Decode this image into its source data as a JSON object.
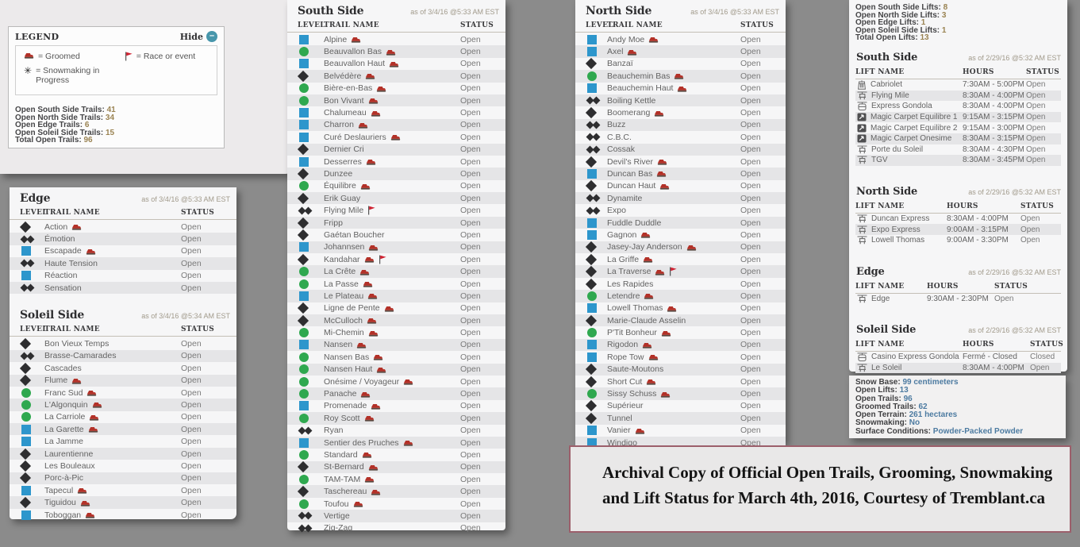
{
  "colors": {
    "desktop_gray": "#8b8b8b",
    "green_circle": "#2fa84f",
    "blue_square": "#2d96cc",
    "black_diamond": "#2e2e30",
    "groomer_red": "#b33128",
    "flag_red": "#cf2030",
    "hide_teal": "#4796ab",
    "count_value_tan": "#9a8352",
    "stats_value_blue": "#4d7ba1",
    "archival_border": "#9c5f6b"
  },
  "legend": {
    "title": "LEGEND",
    "hide_label": "Hide",
    "hide_icon": "minus-circle-icon",
    "items": [
      {
        "icon": "groomer-icon",
        "label": "= Groomed"
      },
      {
        "icon": "race-flag-icon",
        "label": "= Race or event"
      },
      {
        "icon": "snowmaking-icon",
        "label": "= Snowmaking in Progress"
      }
    ],
    "counts": [
      {
        "label": "Open South Side Trails:",
        "value": "41"
      },
      {
        "label": "Open North Side Trails:",
        "value": "34"
      },
      {
        "label": "Open Edge Trails:",
        "value": "6"
      },
      {
        "label": "Open Soleil Side Trails:",
        "value": "15"
      },
      {
        "label": "Total Open Trails:",
        "value": "96"
      }
    ]
  },
  "columns": {
    "level": "LEVEL",
    "trail": "TRAIL NAME",
    "status": "STATUS"
  },
  "lift_columns": {
    "name": "LIFT NAME",
    "hours": "HOURS",
    "status": "STATUS"
  },
  "level_icons": {
    "green": "green-circle-icon",
    "blue": "blue-square-icon",
    "black": "black-diamond-icon",
    "double": "double-black-diamond-icon"
  },
  "trail_sections": [
    {
      "id": "south",
      "title": "South Side",
      "as_of": "as of 3/4/16 @5:33 AM EST",
      "trails": [
        {
          "level": "blue",
          "name": "Alpine",
          "groomed": true,
          "status": "Open"
        },
        {
          "level": "green",
          "name": "Beauvallon Bas",
          "groomed": true,
          "status": "Open"
        },
        {
          "level": "blue",
          "name": "Beauvallon Haut",
          "groomed": true,
          "status": "Open"
        },
        {
          "level": "black",
          "name": "Belvédère",
          "groomed": true,
          "status": "Open"
        },
        {
          "level": "green",
          "name": "Bière-en-Bas",
          "groomed": true,
          "status": "Open"
        },
        {
          "level": "green",
          "name": "Bon Vivant",
          "groomed": true,
          "status": "Open"
        },
        {
          "level": "blue",
          "name": "Chalumeau",
          "groomed": true,
          "status": "Open"
        },
        {
          "level": "blue",
          "name": "Charron",
          "groomed": true,
          "status": "Open"
        },
        {
          "level": "blue",
          "name": "Curé Deslauriers",
          "groomed": true,
          "status": "Open"
        },
        {
          "level": "black",
          "name": "Dernier Cri",
          "status": "Open"
        },
        {
          "level": "blue",
          "name": "Desserres",
          "groomed": true,
          "status": "Open"
        },
        {
          "level": "black",
          "name": "Dunzee",
          "status": "Open"
        },
        {
          "level": "green",
          "name": "Équilibre",
          "groomed": true,
          "status": "Open"
        },
        {
          "level": "black",
          "name": "Erik Guay",
          "status": "Open"
        },
        {
          "level": "double",
          "name": "Flying Mile",
          "race": true,
          "status": "Open"
        },
        {
          "level": "black",
          "name": "Fripp",
          "status": "Open"
        },
        {
          "level": "black",
          "name": "Gaétan Boucher",
          "status": "Open"
        },
        {
          "level": "blue",
          "name": "Johannsen",
          "groomed": true,
          "status": "Open"
        },
        {
          "level": "black",
          "name": "Kandahar",
          "groomed": true,
          "race": true,
          "status": "Open"
        },
        {
          "level": "green",
          "name": "La Crête",
          "groomed": true,
          "status": "Open"
        },
        {
          "level": "green",
          "name": "La Passe",
          "groomed": true,
          "status": "Open"
        },
        {
          "level": "blue",
          "name": "Le Plateau",
          "groomed": true,
          "status": "Open"
        },
        {
          "level": "black",
          "name": "Ligne de Pente",
          "groomed": true,
          "status": "Open"
        },
        {
          "level": "black",
          "name": "McCulloch",
          "groomed": true,
          "status": "Open"
        },
        {
          "level": "green",
          "name": "Mi-Chemin",
          "groomed": true,
          "status": "Open"
        },
        {
          "level": "blue",
          "name": "Nansen",
          "groomed": true,
          "status": "Open"
        },
        {
          "level": "green",
          "name": "Nansen Bas",
          "groomed": true,
          "status": "Open"
        },
        {
          "level": "green",
          "name": "Nansen Haut",
          "groomed": true,
          "status": "Open"
        },
        {
          "level": "green",
          "name": "Onésime / Voyageur",
          "groomed": true,
          "status": "Open"
        },
        {
          "level": "green",
          "name": "Panache",
          "groomed": true,
          "status": "Open"
        },
        {
          "level": "blue",
          "name": "Promenade",
          "groomed": true,
          "status": "Open"
        },
        {
          "level": "green",
          "name": "Roy Scott",
          "groomed": true,
          "status": "Open"
        },
        {
          "level": "double",
          "name": "Ryan",
          "status": "Open"
        },
        {
          "level": "blue",
          "name": "Sentier des Pruches",
          "groomed": true,
          "status": "Open"
        },
        {
          "level": "green",
          "name": "Standard",
          "groomed": true,
          "status": "Open"
        },
        {
          "level": "black",
          "name": "St-Bernard",
          "groomed": true,
          "status": "Open"
        },
        {
          "level": "green",
          "name": "TAM-TAM",
          "groomed": true,
          "status": "Open"
        },
        {
          "level": "black",
          "name": "Taschereau",
          "groomed": true,
          "status": "Open"
        },
        {
          "level": "green",
          "name": "Toufou",
          "groomed": true,
          "status": "Open"
        },
        {
          "level": "double",
          "name": "Vertige",
          "status": "Open"
        },
        {
          "level": "double",
          "name": "Zig-Zag",
          "status": "Open"
        }
      ]
    },
    {
      "id": "north",
      "title": "North Side",
      "as_of": "as of 3/4/16 @5:33 AM EST",
      "trails": [
        {
          "level": "blue",
          "name": "Andy Moe",
          "groomed": true,
          "status": "Open"
        },
        {
          "level": "blue",
          "name": "Axel",
          "groomed": true,
          "status": "Open"
        },
        {
          "level": "black",
          "name": "Banzaï",
          "status": "Open"
        },
        {
          "level": "green",
          "name": "Beauchemin Bas",
          "groomed": true,
          "status": "Open"
        },
        {
          "level": "blue",
          "name": "Beauchemin Haut",
          "groomed": true,
          "status": "Open"
        },
        {
          "level": "double",
          "name": "Boiling Kettle",
          "status": "Open"
        },
        {
          "level": "black",
          "name": "Boomerang",
          "groomed": true,
          "status": "Open"
        },
        {
          "level": "double",
          "name": "Buzz",
          "status": "Open"
        },
        {
          "level": "double",
          "name": "C.B.C.",
          "status": "Open"
        },
        {
          "level": "double",
          "name": "Cossak",
          "status": "Open"
        },
        {
          "level": "black",
          "name": "Devil's River",
          "groomed": true,
          "status": "Open"
        },
        {
          "level": "blue",
          "name": "Duncan Bas",
          "groomed": true,
          "status": "Open"
        },
        {
          "level": "black",
          "name": "Duncan Haut",
          "groomed": true,
          "status": "Open"
        },
        {
          "level": "double",
          "name": "Dynamite",
          "status": "Open"
        },
        {
          "level": "double",
          "name": "Expo",
          "status": "Open"
        },
        {
          "level": "blue",
          "name": "Fuddle Duddle",
          "status": "Open"
        },
        {
          "level": "blue",
          "name": "Gagnon",
          "groomed": true,
          "status": "Open"
        },
        {
          "level": "black",
          "name": "Jasey-Jay Anderson",
          "groomed": true,
          "status": "Open"
        },
        {
          "level": "black",
          "name": "La Griffe",
          "groomed": true,
          "status": "Open"
        },
        {
          "level": "black",
          "name": "La Traverse",
          "groomed": true,
          "race": true,
          "status": "Open"
        },
        {
          "level": "black",
          "name": "Les Rapides",
          "status": "Open"
        },
        {
          "level": "green",
          "name": "Letendre",
          "groomed": true,
          "status": "Open"
        },
        {
          "level": "blue",
          "name": "Lowell Thomas",
          "groomed": true,
          "status": "Open"
        },
        {
          "level": "black",
          "name": "Marie-Claude Asselin",
          "status": "Open"
        },
        {
          "level": "green",
          "name": "P'Tit Bonheur",
          "groomed": true,
          "status": "Open"
        },
        {
          "level": "blue",
          "name": "Rigodon",
          "groomed": true,
          "status": "Open"
        },
        {
          "level": "blue",
          "name": "Rope Tow",
          "groomed": true,
          "status": "Open"
        },
        {
          "level": "black",
          "name": "Saute-Moutons",
          "status": "Open"
        },
        {
          "level": "black",
          "name": "Short Cut",
          "groomed": true,
          "status": "Open"
        },
        {
          "level": "green",
          "name": "Sissy Schuss",
          "groomed": true,
          "status": "Open"
        },
        {
          "level": "black",
          "name": "Supérieur",
          "status": "Open"
        },
        {
          "level": "black",
          "name": "Tunnel",
          "status": "Open"
        },
        {
          "level": "blue",
          "name": "Vanier",
          "groomed": true,
          "status": "Open"
        },
        {
          "level": "blue",
          "name": "Windigo",
          "status": "Open"
        }
      ]
    },
    {
      "id": "edge",
      "title": "Edge",
      "as_of": "as of 3/4/16 @5:33 AM EST",
      "trails": [
        {
          "level": "black",
          "name": "Action",
          "groomed": true,
          "status": "Open"
        },
        {
          "level": "double",
          "name": "Émotion",
          "status": "Open"
        },
        {
          "level": "blue",
          "name": "Escapade",
          "groomed": true,
          "status": "Open"
        },
        {
          "level": "double",
          "name": "Haute Tension",
          "status": "Open"
        },
        {
          "level": "blue",
          "name": "Réaction",
          "status": "Open"
        },
        {
          "level": "double",
          "name": "Sensation",
          "status": "Open"
        }
      ]
    },
    {
      "id": "soleil",
      "title": "Soleil Side",
      "as_of": "as of 3/4/16 @5:34 AM EST",
      "trails": [
        {
          "level": "black",
          "name": "Bon Vieux Temps",
          "status": "Open"
        },
        {
          "level": "double",
          "name": "Brasse-Camarades",
          "status": "Open"
        },
        {
          "level": "black",
          "name": "Cascades",
          "status": "Open"
        },
        {
          "level": "black",
          "name": "Flume",
          "groomed": true,
          "status": "Open"
        },
        {
          "level": "green",
          "name": "Franc Sud",
          "groomed": true,
          "status": "Open"
        },
        {
          "level": "green",
          "name": "L'Algonquin",
          "groomed": true,
          "status": "Open"
        },
        {
          "level": "green",
          "name": "La Carriole",
          "groomed": true,
          "status": "Open"
        },
        {
          "level": "blue",
          "name": "La Garette",
          "groomed": true,
          "status": "Open"
        },
        {
          "level": "blue",
          "name": "La Jamme",
          "status": "Open"
        },
        {
          "level": "black",
          "name": "Laurentienne",
          "status": "Open"
        },
        {
          "level": "black",
          "name": "Les Bouleaux",
          "status": "Open"
        },
        {
          "level": "black",
          "name": "Porc-à-Pic",
          "status": "Open"
        },
        {
          "level": "blue",
          "name": "Tapecul",
          "groomed": true,
          "status": "Open"
        },
        {
          "level": "black",
          "name": "Tiguidou",
          "groomed": true,
          "status": "Open"
        },
        {
          "level": "blue",
          "name": "Toboggan",
          "groomed": true,
          "status": "Open"
        }
      ]
    }
  ],
  "lift_summary": [
    {
      "label": "Open South Side Lifts:",
      "value": "8"
    },
    {
      "label": "Open North Side Lifts:",
      "value": "3"
    },
    {
      "label": "Open Edge Lifts:",
      "value": "1"
    },
    {
      "label": "Open Soleil Side Lifts:",
      "value": "1"
    },
    {
      "label": "Total Open Lifts:",
      "value": "13"
    }
  ],
  "lift_sections": [
    {
      "title": "South Side",
      "as_of": "as of 2/29/16 @5:32 AM EST",
      "lifts": [
        {
          "icon": "cabriolet-icon",
          "name": "Cabriolet",
          "hours": "7:30AM - 5:00PM",
          "status": "Open"
        },
        {
          "icon": "chairlift-icon",
          "name": "Flying Mile",
          "hours": "8:30AM - 4:00PM",
          "status": "Open"
        },
        {
          "icon": "gondola-icon",
          "name": "Express Gondola",
          "hours": "8:30AM - 4:00PM",
          "status": "Open"
        },
        {
          "icon": "magic-carpet-icon",
          "name": "Magic Carpet Equilibre 1",
          "hours": "9:15AM - 3:15PM",
          "status": "Open"
        },
        {
          "icon": "magic-carpet-icon",
          "name": "Magic Carpet Equilibre 2",
          "hours": "9:15AM - 3:00PM",
          "status": "Open"
        },
        {
          "icon": "magic-carpet-icon",
          "name": "Magic Carpet Onesime",
          "hours": "8:30AM - 3:15PM",
          "status": "Open"
        },
        {
          "icon": "chairlift-icon",
          "name": "Porte du Soleil",
          "hours": "8:30AM - 4:30PM",
          "status": "Open"
        },
        {
          "icon": "chairlift-icon",
          "name": "TGV",
          "hours": "8:30AM - 3:45PM",
          "status": "Open"
        }
      ]
    },
    {
      "title": "North Side",
      "as_of": "as of 2/29/16 @5:32 AM EST",
      "lifts": [
        {
          "icon": "chairlift-icon",
          "name": "Duncan Express",
          "hours": "8:30AM - 4:00PM",
          "status": "Open"
        },
        {
          "icon": "chairlift-icon",
          "name": "Expo Express",
          "hours": "9:00AM - 3:15PM",
          "status": "Open"
        },
        {
          "icon": "chairlift-icon",
          "name": "Lowell Thomas",
          "hours": "9:00AM - 3:30PM",
          "status": "Open"
        }
      ]
    },
    {
      "title": "Edge",
      "as_of": "as of 2/29/16 @5:32 AM EST",
      "lifts": [
        {
          "icon": "chairlift-icon",
          "name": "Edge",
          "hours": "9:30AM - 2:30PM",
          "status": "Open"
        }
      ]
    },
    {
      "title": "Soleil Side",
      "as_of": "as of 2/29/16 @5:32 AM EST",
      "lifts": [
        {
          "icon": "gondola-icon",
          "name": "Casino Express Gondola",
          "hours": "Fermé - Closed",
          "status": "Closed"
        },
        {
          "icon": "chairlift-icon",
          "name": "Le Soleil",
          "hours": "8:30AM - 4:00PM",
          "status": "Open"
        }
      ]
    }
  ],
  "stats": [
    {
      "label": "Snow Base:",
      "value": "99 centimeters"
    },
    {
      "label": "Open Lifts:",
      "value": "13"
    },
    {
      "label": "Open Trails:",
      "value": "96"
    },
    {
      "label": "Groomed Trails:",
      "value": "62"
    },
    {
      "label": "Open Terrain:",
      "value": "261 hectares"
    },
    {
      "label": "Snowmaking:",
      "value": "No"
    },
    {
      "label": "Surface Conditions:",
      "value": "Powder-Packed Powder"
    }
  ],
  "archival": {
    "line1": "Archival Copy of Official Open Trails, Grooming, Snowmaking",
    "line2": "and Lift Status for March 4th, 2016, Courtesy of Tremblant.ca"
  }
}
